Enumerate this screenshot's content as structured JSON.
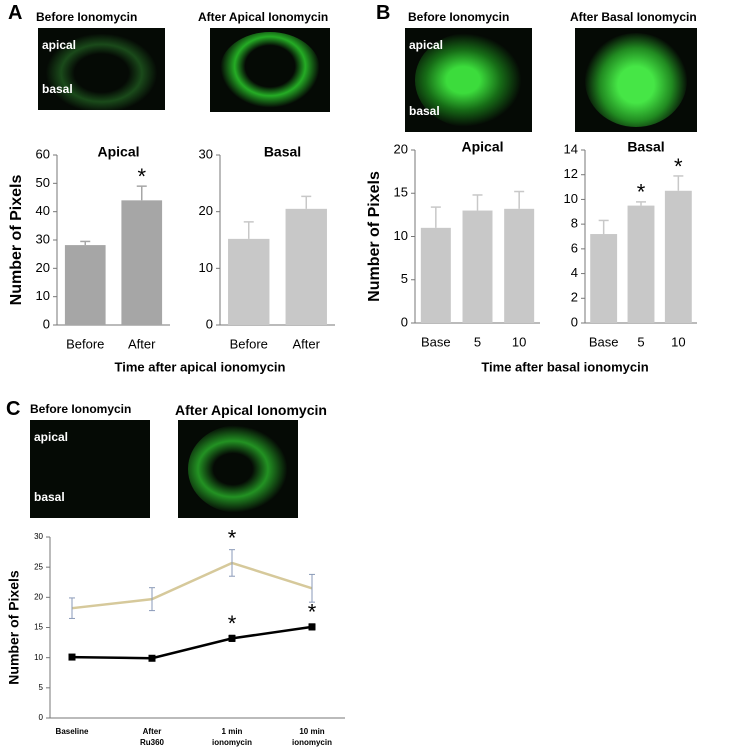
{
  "panels": [
    {
      "label": "A",
      "images": [
        {
          "caption": "Before Ionomycin",
          "labels": [
            "apical",
            "basal"
          ]
        },
        {
          "caption": "After Apical Ionomycin"
        }
      ]
    },
    {
      "label": "B",
      "images": [
        {
          "caption": "Before Ionomycin",
          "labels": [
            "apical",
            "basal"
          ]
        },
        {
          "caption": "After Basal Ionomycin"
        }
      ]
    },
    {
      "label": "C",
      "images": [
        {
          "caption": "Before Ionomycin",
          "labels": [
            "apical",
            "basal"
          ]
        },
        {
          "caption": "After Apical Ionomycin"
        }
      ]
    }
  ],
  "chart_data": [
    {
      "type": "bar",
      "title": "Apical",
      "ylabel": "Number of Pixels",
      "xlabel": "Time after apical ionomycin",
      "categories": [
        "Before",
        "After"
      ],
      "values": [
        28.2,
        44
      ],
      "errors": [
        1.3,
        5
      ],
      "significance": [
        null,
        "*"
      ],
      "color": "#a6a6a6",
      "ylim": [
        0,
        60
      ],
      "yticks": [
        0,
        10,
        20,
        30,
        40,
        50,
        60
      ]
    },
    {
      "type": "bar",
      "title": "Basal",
      "categories": [
        "Before",
        "After"
      ],
      "values": [
        15.2,
        20.5
      ],
      "errors": [
        3,
        2.2
      ],
      "significance": [
        null,
        null
      ],
      "color": "#c8c8c8",
      "ylim": [
        0,
        30
      ],
      "yticks": [
        0,
        10,
        20,
        30
      ]
    },
    {
      "type": "bar",
      "title": "Apical",
      "ylabel": "Number of Pixels",
      "xlabel": "Time after basal ionomycin",
      "categories": [
        "Base",
        "5",
        "10"
      ],
      "values": [
        11,
        13,
        13.2
      ],
      "errors": [
        2.4,
        1.8,
        2
      ],
      "significance": [
        null,
        null,
        null
      ],
      "color": "#c8c8c8",
      "ylim": [
        0,
        20
      ],
      "yticks": [
        0,
        5,
        10,
        15,
        20
      ]
    },
    {
      "type": "bar",
      "title": "Basal",
      "categories": [
        "Base",
        "5",
        "10"
      ],
      "values": [
        7.2,
        9.5,
        10.7
      ],
      "errors": [
        1.1,
        0.3,
        1.2
      ],
      "significance": [
        null,
        "*",
        "*"
      ],
      "color": "#c8c8c8",
      "ylim": [
        0,
        14
      ],
      "yticks": [
        0,
        2,
        4,
        6,
        8,
        10,
        12,
        14
      ]
    },
    {
      "type": "line",
      "ylabel": "Number of Pixels",
      "categories": [
        "Baseline",
        "After\nRu360",
        "1 min\nionomycin",
        "10 min\nionomycin"
      ],
      "series": [
        {
          "color": "#d6c99b",
          "values": [
            18.2,
            19.7,
            25.7,
            21.5
          ],
          "errors": [
            1.7,
            1.9,
            2.2,
            2.3
          ],
          "significance": [
            null,
            null,
            "*",
            null
          ]
        },
        {
          "color": "#000000",
          "values": [
            10.1,
            9.9,
            13.2,
            15.1
          ],
          "errors": [
            0.3,
            0.3,
            0.5,
            0.5
          ],
          "significance": [
            null,
            null,
            "*",
            "*"
          ]
        }
      ],
      "ylim": [
        0,
        30
      ],
      "yticks": [
        0,
        5,
        10,
        15,
        20,
        25,
        30
      ]
    }
  ]
}
